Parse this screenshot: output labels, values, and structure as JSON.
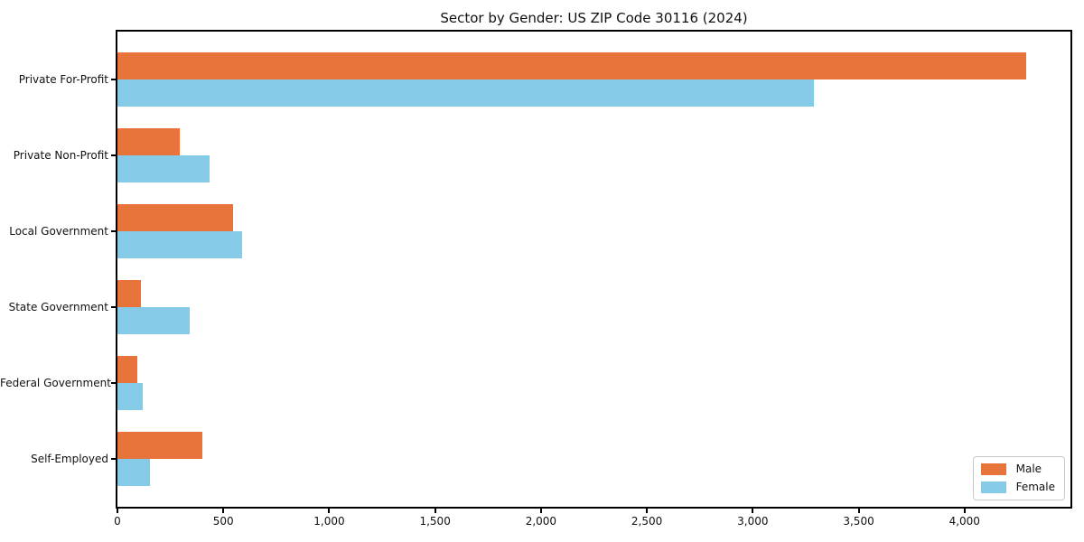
{
  "chart_data": {
    "type": "bar",
    "orientation": "horizontal",
    "title": "Sector by Gender: US ZIP Code 30116 (2024)",
    "categories": [
      "Private For-Profit",
      "Private Non-Profit",
      "Local Government",
      "State Government",
      "Federal Government",
      "Self-Employed"
    ],
    "series": [
      {
        "name": "Male",
        "color": "#e8743b",
        "values": [
          4290,
          295,
          545,
          110,
          95,
          400
        ]
      },
      {
        "name": "Female",
        "color": "#85cbe8",
        "values": [
          3290,
          435,
          590,
          340,
          120,
          155
        ]
      }
    ],
    "xlim": [
      0,
      4500
    ],
    "xticks": [
      0,
      500,
      1000,
      1500,
      2000,
      2500,
      3000,
      3500,
      4000
    ],
    "xtick_labels": [
      "0",
      "500",
      "1,000",
      "1,500",
      "2,000",
      "2,500",
      "3,000",
      "3,500",
      "4,000"
    ],
    "xlabel": "",
    "ylabel": "",
    "grid": false,
    "legend_position": "lower right",
    "axis_color": "#000000"
  }
}
